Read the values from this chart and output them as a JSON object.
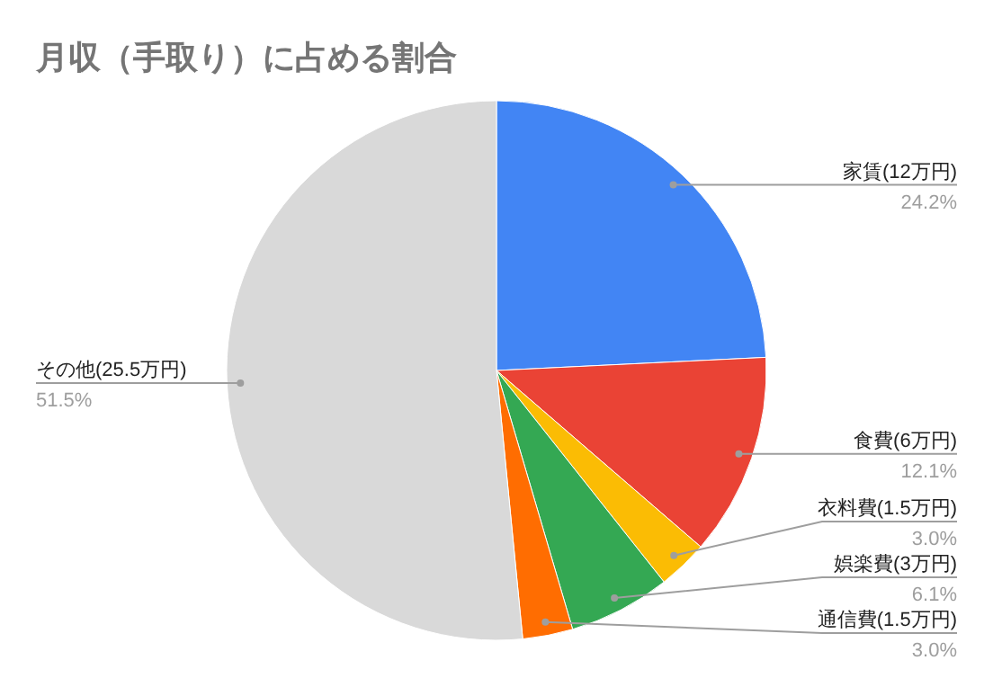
{
  "chart_data": {
    "type": "pie",
    "title": "月収（手取り）に占める割合",
    "categories": [
      "家賃(12万円)",
      "食費(6万円)",
      "衣料費(1.5万円)",
      "娯楽費(3万円)",
      "通信費(1.5万円)",
      "その他(25.5万円)"
    ],
    "values": [
      24.2,
      12.1,
      3.0,
      6.1,
      3.0,
      51.5
    ],
    "value_labels": [
      "24.2%",
      "12.1%",
      "3.0%",
      "6.1%",
      "3.0%",
      "51.5%"
    ],
    "colors": [
      "#4285f4",
      "#ea4335",
      "#fbbc04",
      "#34a853",
      "#ff6d01",
      "#d9d9d9"
    ]
  }
}
